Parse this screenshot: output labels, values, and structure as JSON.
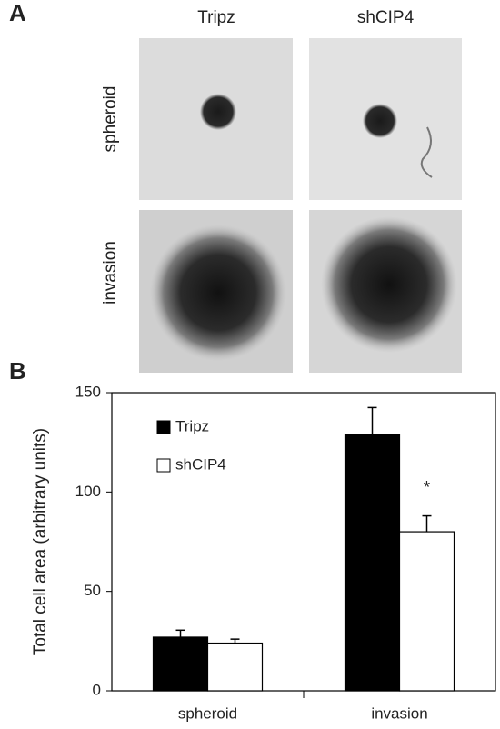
{
  "panel_a": {
    "label": "A",
    "columns": [
      "Tripz",
      "shCIP4"
    ],
    "rows": [
      "spheroid",
      "invasion"
    ]
  },
  "chart_data": {
    "type": "bar",
    "panel_label": "B",
    "y_label": "Total cell area (arbitrary units)",
    "categories": [
      "spheroid",
      "invasion"
    ],
    "series": [
      {
        "name": "Tripz",
        "color": "#000000",
        "values": [
          27,
          129
        ],
        "errors": [
          3.5,
          13.5
        ]
      },
      {
        "name": "shCIP4",
        "color": "#ffffff",
        "values": [
          24,
          80
        ],
        "errors": [
          2,
          8
        ]
      }
    ],
    "ylim": [
      0,
      150
    ],
    "yticks": [
      0,
      50,
      100,
      150
    ],
    "grid": false,
    "legend": "upper left",
    "annotation": "*"
  }
}
